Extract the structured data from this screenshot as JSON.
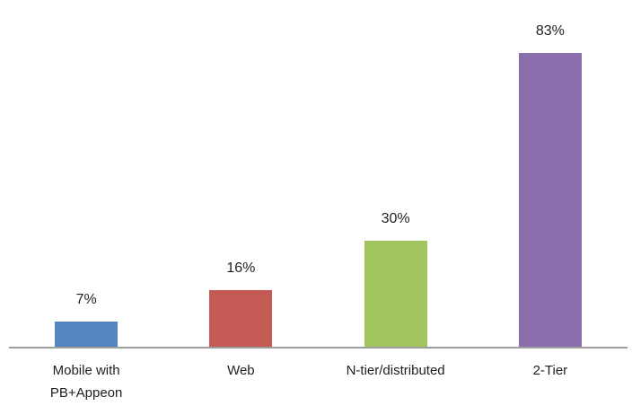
{
  "chart_data": {
    "type": "bar",
    "categories": [
      "Mobile with PB+Appeon",
      "Web",
      "N-tier/distributed",
      "2-Tier"
    ],
    "values": [
      7,
      16,
      30,
      83
    ],
    "data_labels": [
      "7%",
      "16%",
      "30%",
      "83%"
    ],
    "unit": "%",
    "bar_colors": [
      "#5585c1",
      "#c45a54",
      "#a2c45f",
      "#8a6fac"
    ],
    "axis_line_color": "#9d9d9d",
    "text_color": "#1f1f1f",
    "grid": false,
    "legend": false,
    "y_axis_visible": false,
    "data_label_position": "above"
  }
}
